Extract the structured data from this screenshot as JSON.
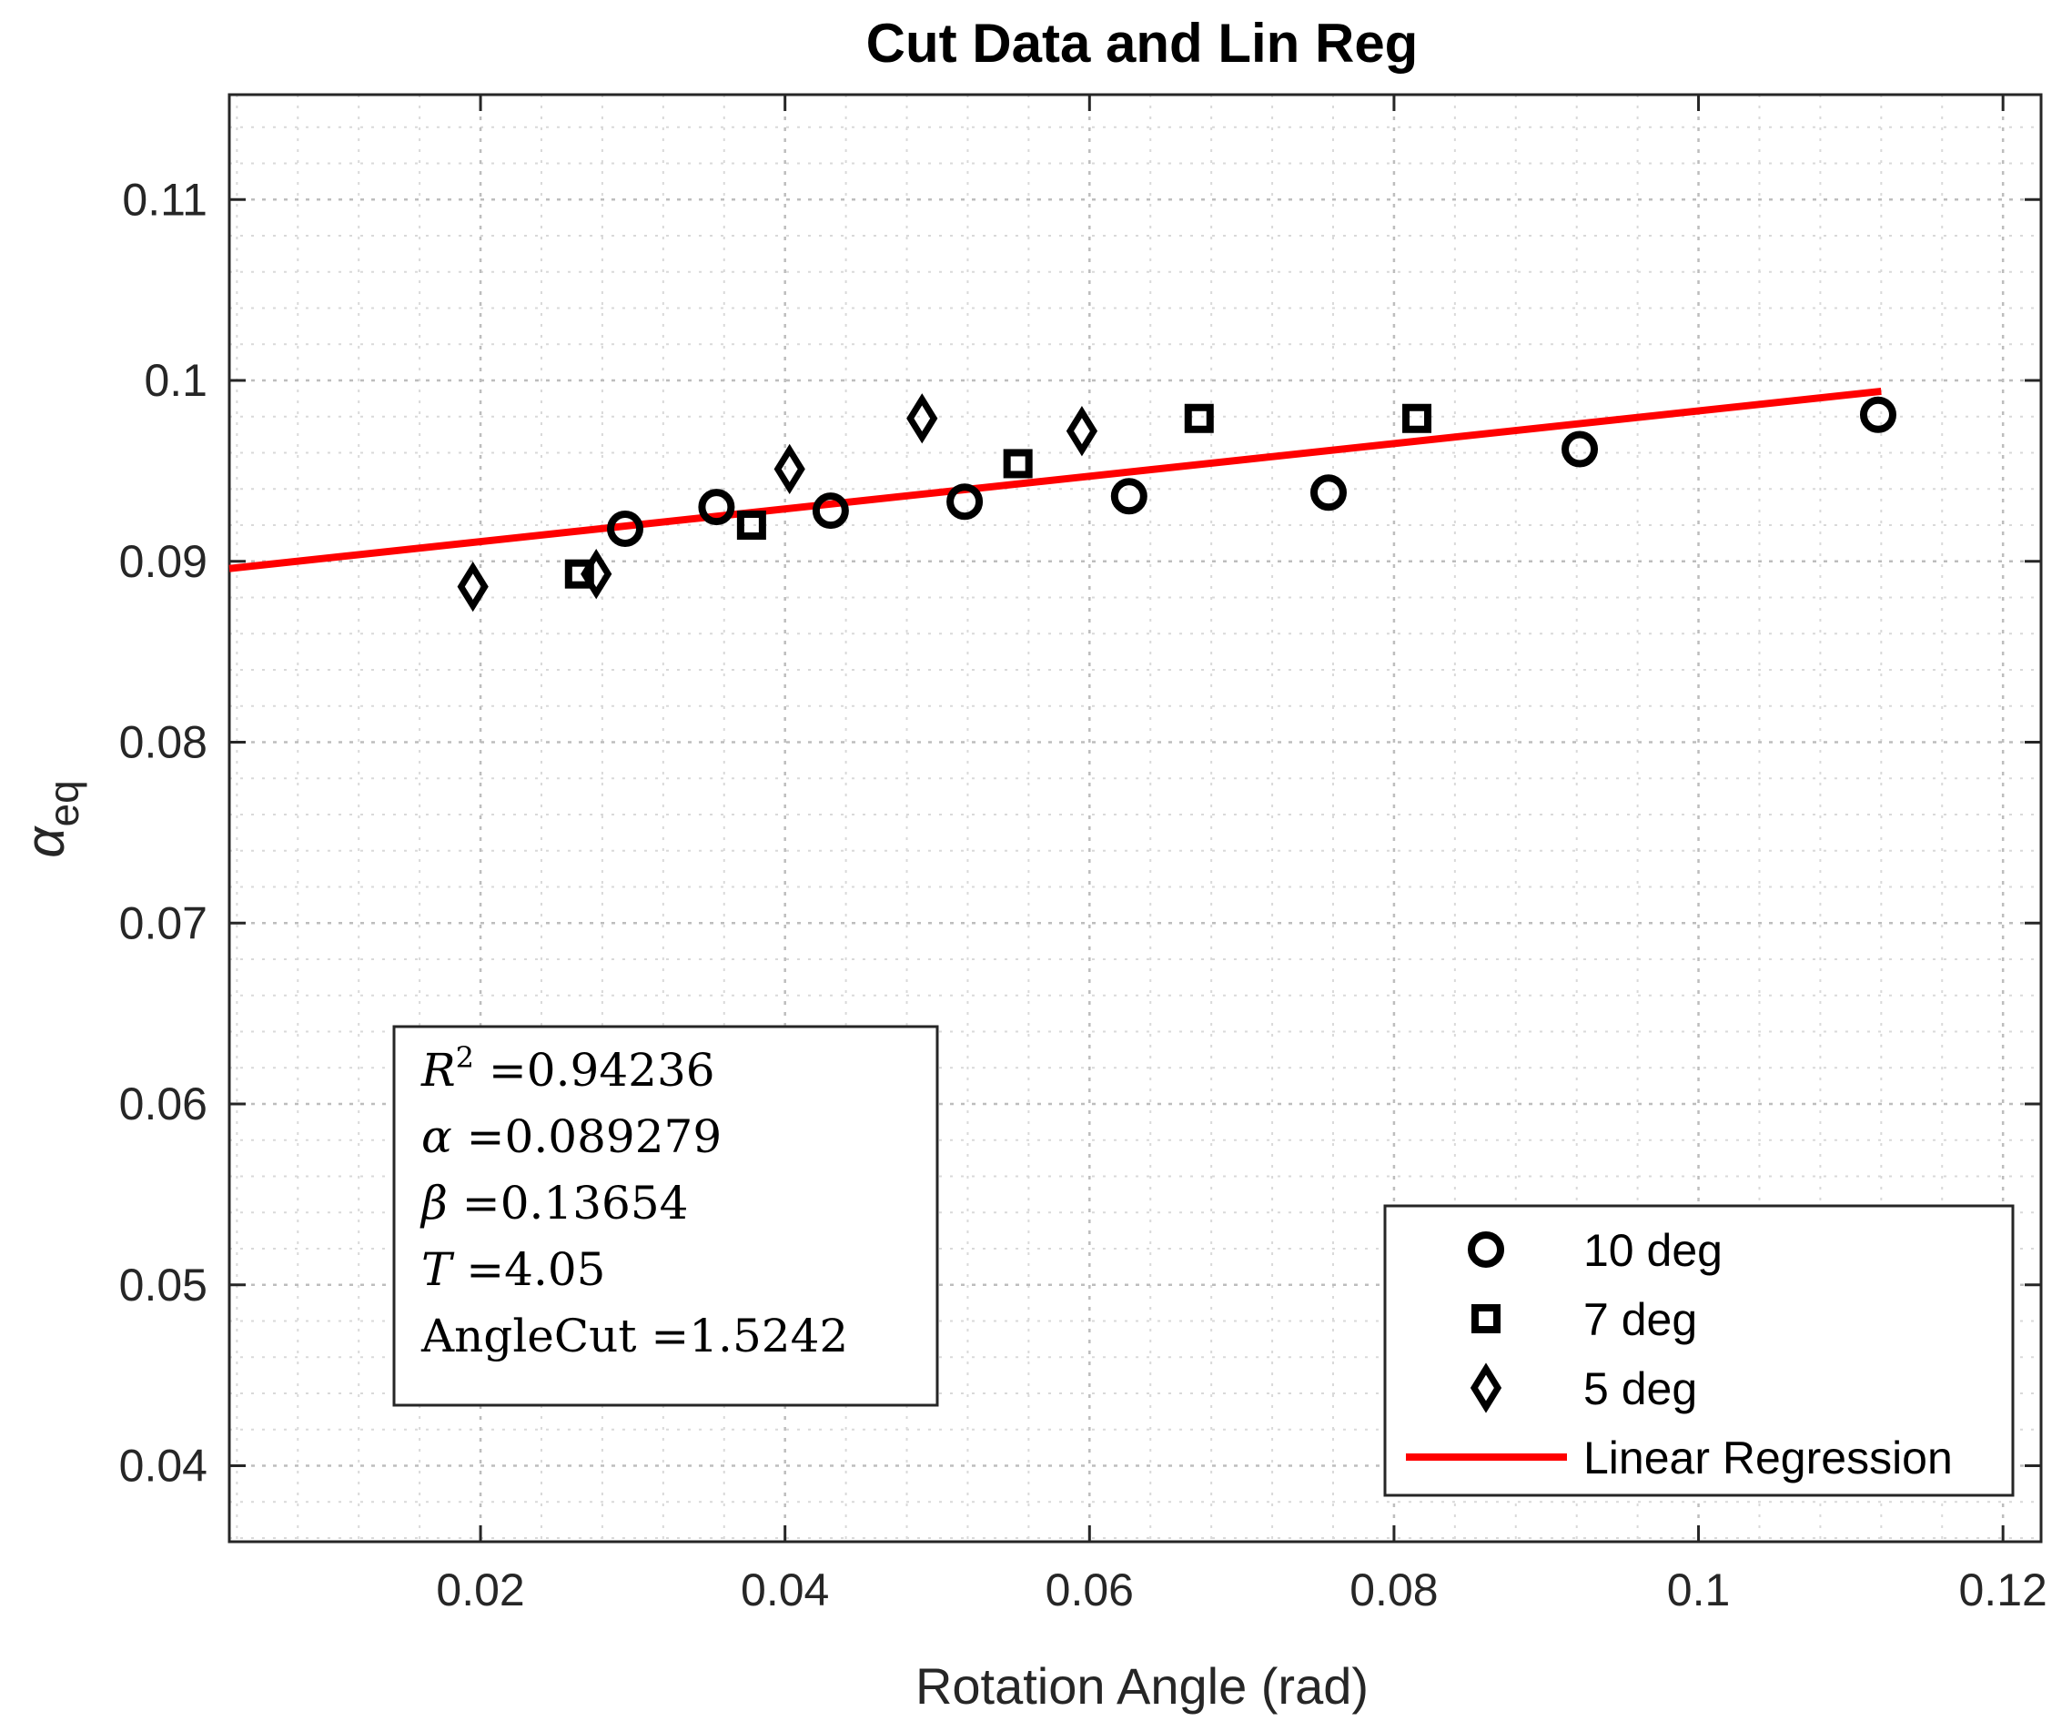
{
  "chart_data": {
    "type": "scatter",
    "title": "Cut Data and Lin Reg",
    "xlabel": "Rotation Angle (rad)",
    "ylabel": "α",
    "ylabel_sub": "eq",
    "xlim": [
      0.0035,
      0.1225
    ],
    "ylim": [
      0.0358,
      0.1158
    ],
    "xticks": [
      0.02,
      0.04,
      0.06,
      0.08,
      0.1,
      0.12
    ],
    "xtick_labels": [
      "0.02",
      "0.04",
      "0.06",
      "0.08",
      "0.1",
      "0.12"
    ],
    "yticks": [
      0.04,
      0.05,
      0.06,
      0.07,
      0.08,
      0.09,
      0.1,
      0.11
    ],
    "ytick_labels": [
      "0.04",
      "0.05",
      "0.06",
      "0.07",
      "0.08",
      "0.09",
      "0.1",
      "0.11"
    ],
    "grid": true,
    "minor_grid": true,
    "series": [
      {
        "name": "10 deg",
        "marker": "circle",
        "x": [
          0.0295,
          0.0355,
          0.043,
          0.0518,
          0.0626,
          0.0757,
          0.0922,
          0.1118
        ],
        "y": [
          0.0918,
          0.093,
          0.0928,
          0.0933,
          0.0936,
          0.0938,
          0.0962,
          0.0981
        ]
      },
      {
        "name": "7 deg",
        "marker": "square",
        "x": [
          0.0265,
          0.0378,
          0.0553,
          0.0672,
          0.0815
        ],
        "y": [
          0.0893,
          0.092,
          0.0954,
          0.0979,
          0.0979
        ]
      },
      {
        "name": "5 deg",
        "marker": "diamond",
        "x": [
          0.0195,
          0.0276,
          0.0403,
          0.049,
          0.0595
        ],
        "y": [
          0.0886,
          0.0893,
          0.0951,
          0.0979,
          0.0972
        ]
      },
      {
        "name": "Linear Regression",
        "type": "line",
        "color": "#ff0000",
        "x": [
          0.0035,
          0.112
        ],
        "y": [
          0.0896,
          0.0994
        ]
      }
    ],
    "legend_position": "bottom-right",
    "annotation_box": {
      "position": "bottom-left",
      "lines": [
        {
          "symbol": "R",
          "sup": "2",
          "text": " =0.94236"
        },
        {
          "symbol": "α",
          "sup": "",
          "text": " =0.089279"
        },
        {
          "symbol": "β",
          "sup": "",
          "text": " =0.13654"
        },
        {
          "symbol": "T",
          "sup": "",
          "text": " =4.05"
        },
        {
          "symbol": "",
          "sup": "",
          "text": "AngleCut =1.5242"
        }
      ]
    }
  }
}
